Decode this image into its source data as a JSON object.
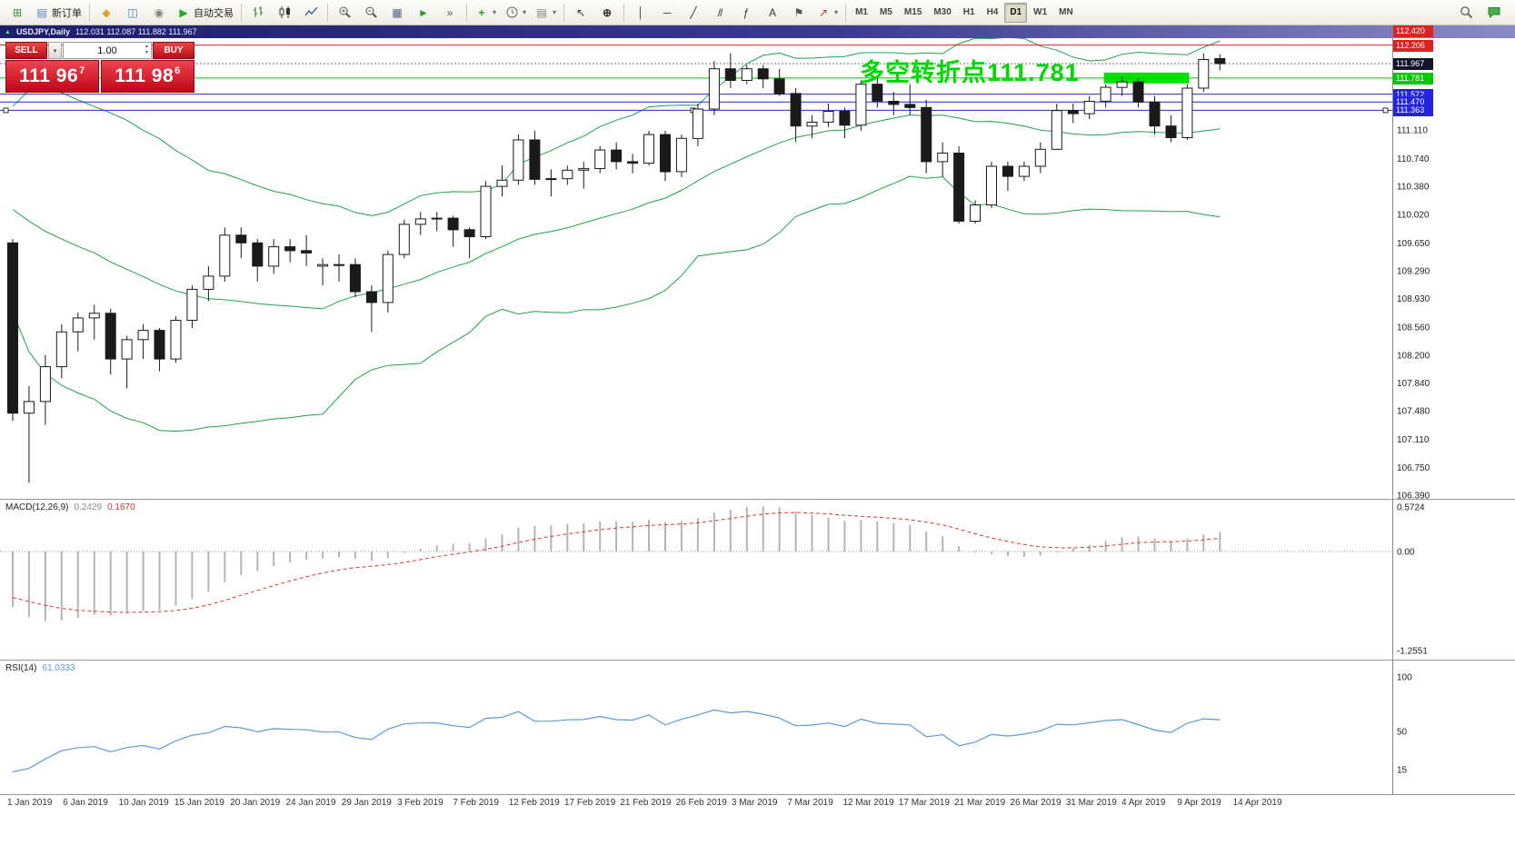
{
  "toolbar": {
    "groups": [
      {
        "items": [
          {
            "name": "new-chart-button",
            "icon": "newchart"
          },
          {
            "name": "new-order-button",
            "icon": "neworder",
            "label": "新订单"
          }
        ]
      },
      {
        "items": [
          {
            "name": "metaeditor-button",
            "icon": "metaeditor"
          },
          {
            "name": "strategy-tester-button",
            "icon": "tester"
          },
          {
            "name": "options-button",
            "icon": "options"
          },
          {
            "name": "autotrading-button",
            "icon": "play",
            "label": "自动交易"
          }
        ]
      },
      {
        "items": [
          {
            "name": "bar-chart-button",
            "icon": "ohlc"
          },
          {
            "name": "candlestick-button",
            "icon": "candle"
          },
          {
            "name": "line-chart-button",
            "icon": "linechart"
          }
        ]
      },
      {
        "items": [
          {
            "name": "zoom-in-button",
            "icon": "zoomin"
          },
          {
            "name": "zoom-out-button",
            "icon": "zoomout"
          },
          {
            "name": "tile-windows-button",
            "icon": "tile"
          },
          {
            "name": "auto-scroll-button",
            "icon": "autoscroll"
          },
          {
            "name": "chart-shift-button",
            "icon": "shift"
          }
        ]
      },
      {
        "items": [
          {
            "name": "indicators-button",
            "icon": "indicators",
            "dropdown": true
          },
          {
            "name": "periods-button",
            "icon": "clock",
            "dropdown": true
          },
          {
            "name": "templates-button",
            "icon": "template",
            "dropdown": true
          }
        ]
      },
      {
        "items": [
          {
            "name": "cursor-button",
            "icon": "cursor"
          },
          {
            "name": "crosshair-button",
            "icon": "crosshair"
          }
        ]
      },
      {
        "items": [
          {
            "name": "vertical-line-button",
            "icon": "vline"
          },
          {
            "name": "horizontal-line-button",
            "icon": "hline"
          },
          {
            "name": "trendline-button",
            "icon": "tline"
          },
          {
            "name": "channel-button",
            "icon": "channel"
          },
          {
            "name": "fibonacci-button",
            "icon": "fibo"
          },
          {
            "name": "text-button",
            "icon": "text"
          },
          {
            "name": "label-button",
            "icon": "labelflag"
          },
          {
            "name": "arrows-button",
            "icon": "arrows",
            "dropdown": true
          }
        ]
      }
    ],
    "timeframes": [
      "M1",
      "M5",
      "M15",
      "M30",
      "H1",
      "H4",
      "D1",
      "W1",
      "MN"
    ],
    "active_timeframe": "D1",
    "right_items": [
      {
        "name": "search-button",
        "icon": "search"
      },
      {
        "name": "community-chat-button",
        "icon": "chat"
      }
    ]
  },
  "chart_window": {
    "titlebar": {
      "title": "USDJPY,Daily",
      "ohlc": "112.031 112.087 111.882 111.967"
    },
    "one_click_trading": {
      "sell_label": "SELL",
      "buy_label": "BUY",
      "volume": "1.00",
      "sell_price_main": "111 96",
      "sell_price_pip": "7",
      "buy_price_main": "111 98",
      "buy_price_pip": "6"
    },
    "annotation": {
      "text": "多空转折点111.781",
      "color": "#00d800"
    },
    "price_lines": [
      {
        "label": "112.420",
        "price": 112.42,
        "color": "#dd2222",
        "style": "solid"
      },
      {
        "label": "112.206",
        "price": 112.206,
        "color": "#dd2222",
        "style": "solid"
      },
      {
        "label": "111.967",
        "price": 111.967,
        "color": "#15152a",
        "style": "dotted",
        "role": "bid"
      },
      {
        "label": "111.781",
        "price": 111.781,
        "color": "#00ca00",
        "style": "solid"
      },
      {
        "label": "111.572",
        "price": 111.572,
        "color": "#2424e0",
        "style": "solid"
      },
      {
        "label": "111.470",
        "price": 111.47,
        "color": "#2424e0",
        "style": "solid"
      },
      {
        "label": "111.363",
        "price": 111.363,
        "color": "#2424e0",
        "style": "solid",
        "selected": true
      }
    ],
    "highlight_zone": {
      "price": 111.781,
      "color": "#00e400",
      "from_bar": 67,
      "to_bar": 72
    },
    "price_axis_labels": [
      "111.110",
      "110.740",
      "110.380",
      "110.020",
      "109.650",
      "109.290",
      "108.930",
      "108.560",
      "108.200",
      "107.840",
      "107.480",
      "107.110",
      "106.750",
      "106.390"
    ],
    "indicators": {
      "macd": {
        "label": "MACD(12,26,9)",
        "main_value": "0.2429",
        "signal_value": "0.1670",
        "scale": [
          "0.5724",
          "0.00",
          "-1.2551"
        ],
        "colors": {
          "histogram": "#b5b5b5",
          "signal": "#e03232"
        }
      },
      "rsi": {
        "label": "RSI(14)",
        "value": "61.0333",
        "scale": [
          "100",
          "50",
          "15"
        ],
        "color": "#5b9bd5"
      }
    },
    "date_axis_labels": [
      "1 Jan 2019",
      "6 Jan 2019",
      "10 Jan 2019",
      "15 Jan 2019",
      "20 Jan 2019",
      "24 Jan 2019",
      "29 Jan 2019",
      "3 Feb 2019",
      "7 Feb 2019",
      "12 Feb 2019",
      "17 Feb 2019",
      "21 Feb 2019",
      "26 Feb 2019",
      "3 Mar 2019",
      "7 Mar 2019",
      "12 Mar 2019",
      "17 Mar 2019",
      "21 Mar 2019",
      "26 Mar 2019",
      "31 Mar 2019",
      "4 Apr 2019",
      "9 Apr 2019",
      "14 Apr 2019"
    ]
  },
  "chart_data": {
    "type": "candlestick",
    "symbol": "USDJPY",
    "timeframe": "Daily",
    "ylim": [
      106.33,
      112.27
    ],
    "overlays": [
      {
        "name": "Bollinger Bands",
        "period": 20,
        "deviation": 2,
        "color": "#1fa24a"
      }
    ],
    "sub_indicators": [
      {
        "name": "MACD",
        "params": [
          12,
          26,
          9
        ]
      },
      {
        "name": "RSI",
        "params": [
          14
        ]
      }
    ],
    "dates": [
      "2019-01-01",
      "2019-01-02",
      "2019-01-03",
      "2019-01-04",
      "2019-01-07",
      "2019-01-08",
      "2019-01-09",
      "2019-01-10",
      "2019-01-11",
      "2019-01-14",
      "2019-01-15",
      "2019-01-16",
      "2019-01-17",
      "2019-01-18",
      "2019-01-21",
      "2019-01-22",
      "2019-01-23",
      "2019-01-24",
      "2019-01-25",
      "2019-01-28",
      "2019-01-29",
      "2019-01-30",
      "2019-01-31",
      "2019-02-01",
      "2019-02-04",
      "2019-02-05",
      "2019-02-06",
      "2019-02-07",
      "2019-02-08",
      "2019-02-11",
      "2019-02-12",
      "2019-02-13",
      "2019-02-14",
      "2019-02-15",
      "2019-02-18",
      "2019-02-19",
      "2019-02-20",
      "2019-02-21",
      "2019-02-22",
      "2019-02-25",
      "2019-02-26",
      "2019-02-27",
      "2019-02-28",
      "2019-03-01",
      "2019-03-04",
      "2019-03-05",
      "2019-03-06",
      "2019-03-07",
      "2019-03-08",
      "2019-03-11",
      "2019-03-12",
      "2019-03-13",
      "2019-03-14",
      "2019-03-15",
      "2019-03-18",
      "2019-03-19",
      "2019-03-20",
      "2019-03-21",
      "2019-03-22",
      "2019-03-25",
      "2019-03-26",
      "2019-03-27",
      "2019-03-28",
      "2019-03-29",
      "2019-04-01",
      "2019-04-02",
      "2019-04-03",
      "2019-04-04",
      "2019-04-05",
      "2019-04-08",
      "2019-04-09",
      "2019-04-10",
      "2019-04-11",
      "2019-04-12",
      "2019-04-15"
    ],
    "open": [
      109.65,
      107.45,
      107.6,
      108.05,
      108.5,
      108.68,
      108.74,
      108.15,
      108.4,
      108.52,
      108.15,
      108.65,
      109.05,
      109.22,
      109.75,
      109.65,
      109.35,
      109.6,
      109.55,
      109.35,
      109.37,
      109.37,
      109.02,
      108.88,
      109.5,
      109.89,
      109.96,
      109.97,
      109.82,
      109.73,
      110.38,
      110.46,
      110.98,
      110.47,
      110.48,
      110.59,
      110.61,
      110.85,
      110.7,
      110.68,
      111.05,
      110.57,
      111.0,
      111.38,
      111.9,
      111.75,
      111.9,
      111.77,
      111.58,
      111.16,
      111.21,
      111.35,
      111.17,
      111.7,
      111.48,
      111.44,
      111.4,
      110.7,
      110.81,
      109.93,
      110.14,
      110.64,
      110.51,
      110.64,
      110.86,
      111.36,
      111.32,
      111.48,
      111.66,
      111.73,
      111.47,
      111.16,
      111.01,
      111.65,
      112.031
    ],
    "high": [
      109.7,
      107.8,
      108.2,
      108.6,
      108.75,
      108.85,
      108.8,
      108.45,
      108.6,
      108.55,
      108.7,
      109.1,
      109.35,
      109.85,
      109.85,
      109.7,
      109.7,
      109.7,
      109.75,
      109.45,
      109.5,
      109.45,
      109.1,
      109.55,
      109.95,
      110.05,
      110.05,
      110.0,
      109.85,
      110.45,
      110.65,
      111.05,
      111.1,
      110.6,
      110.65,
      110.7,
      110.9,
      110.95,
      110.8,
      111.1,
      111.1,
      111.05,
      111.45,
      112.0,
      112.1,
      111.95,
      111.95,
      111.9,
      111.65,
      111.3,
      111.45,
      111.4,
      111.75,
      111.8,
      111.6,
      111.7,
      111.5,
      110.95,
      110.9,
      110.2,
      110.7,
      110.7,
      110.7,
      110.95,
      111.45,
      111.45,
      111.55,
      111.7,
      111.8,
      111.78,
      111.55,
      111.3,
      111.7,
      112.1,
      112.087
    ],
    "low": [
      107.35,
      106.55,
      107.3,
      107.9,
      108.25,
      108.4,
      107.95,
      107.77,
      108.15,
      107.99,
      108.1,
      108.55,
      108.9,
      109.15,
      109.45,
      109.15,
      109.25,
      109.4,
      109.35,
      109.1,
      109.15,
      108.95,
      108.5,
      108.75,
      109.45,
      109.75,
      109.8,
      109.6,
      109.45,
      109.7,
      110.25,
      110.4,
      110.4,
      110.25,
      110.4,
      110.35,
      110.55,
      110.6,
      110.55,
      110.65,
      110.45,
      110.5,
      110.9,
      111.3,
      111.65,
      111.7,
      111.65,
      111.55,
      110.95,
      111.0,
      111.15,
      111.0,
      111.1,
      111.4,
      111.3,
      111.3,
      110.55,
      110.5,
      109.9,
      109.9,
      110.1,
      110.32,
      110.45,
      110.55,
      110.85,
      111.2,
      111.25,
      111.4,
      111.55,
      111.4,
      111.05,
      110.95,
      110.98,
      111.6,
      111.882
    ],
    "close": [
      107.45,
      107.6,
      108.05,
      108.5,
      108.68,
      108.74,
      108.15,
      108.4,
      108.52,
      108.15,
      108.65,
      109.05,
      109.22,
      109.75,
      109.65,
      109.35,
      109.6,
      109.55,
      109.52,
      109.37,
      109.37,
      109.02,
      108.88,
      109.5,
      109.89,
      109.96,
      109.97,
      109.82,
      109.73,
      110.38,
      110.46,
      110.98,
      110.47,
      110.48,
      110.59,
      110.61,
      110.85,
      110.7,
      110.68,
      111.05,
      110.57,
      111.0,
      111.38,
      111.9,
      111.75,
      111.9,
      111.77,
      111.58,
      111.16,
      111.21,
      111.35,
      111.17,
      111.7,
      111.48,
      111.44,
      111.4,
      110.7,
      110.81,
      109.93,
      110.14,
      110.64,
      110.51,
      110.64,
      110.86,
      111.36,
      111.32,
      111.48,
      111.66,
      111.73,
      111.47,
      111.16,
      111.01,
      111.65,
      112.02,
      111.967
    ]
  }
}
